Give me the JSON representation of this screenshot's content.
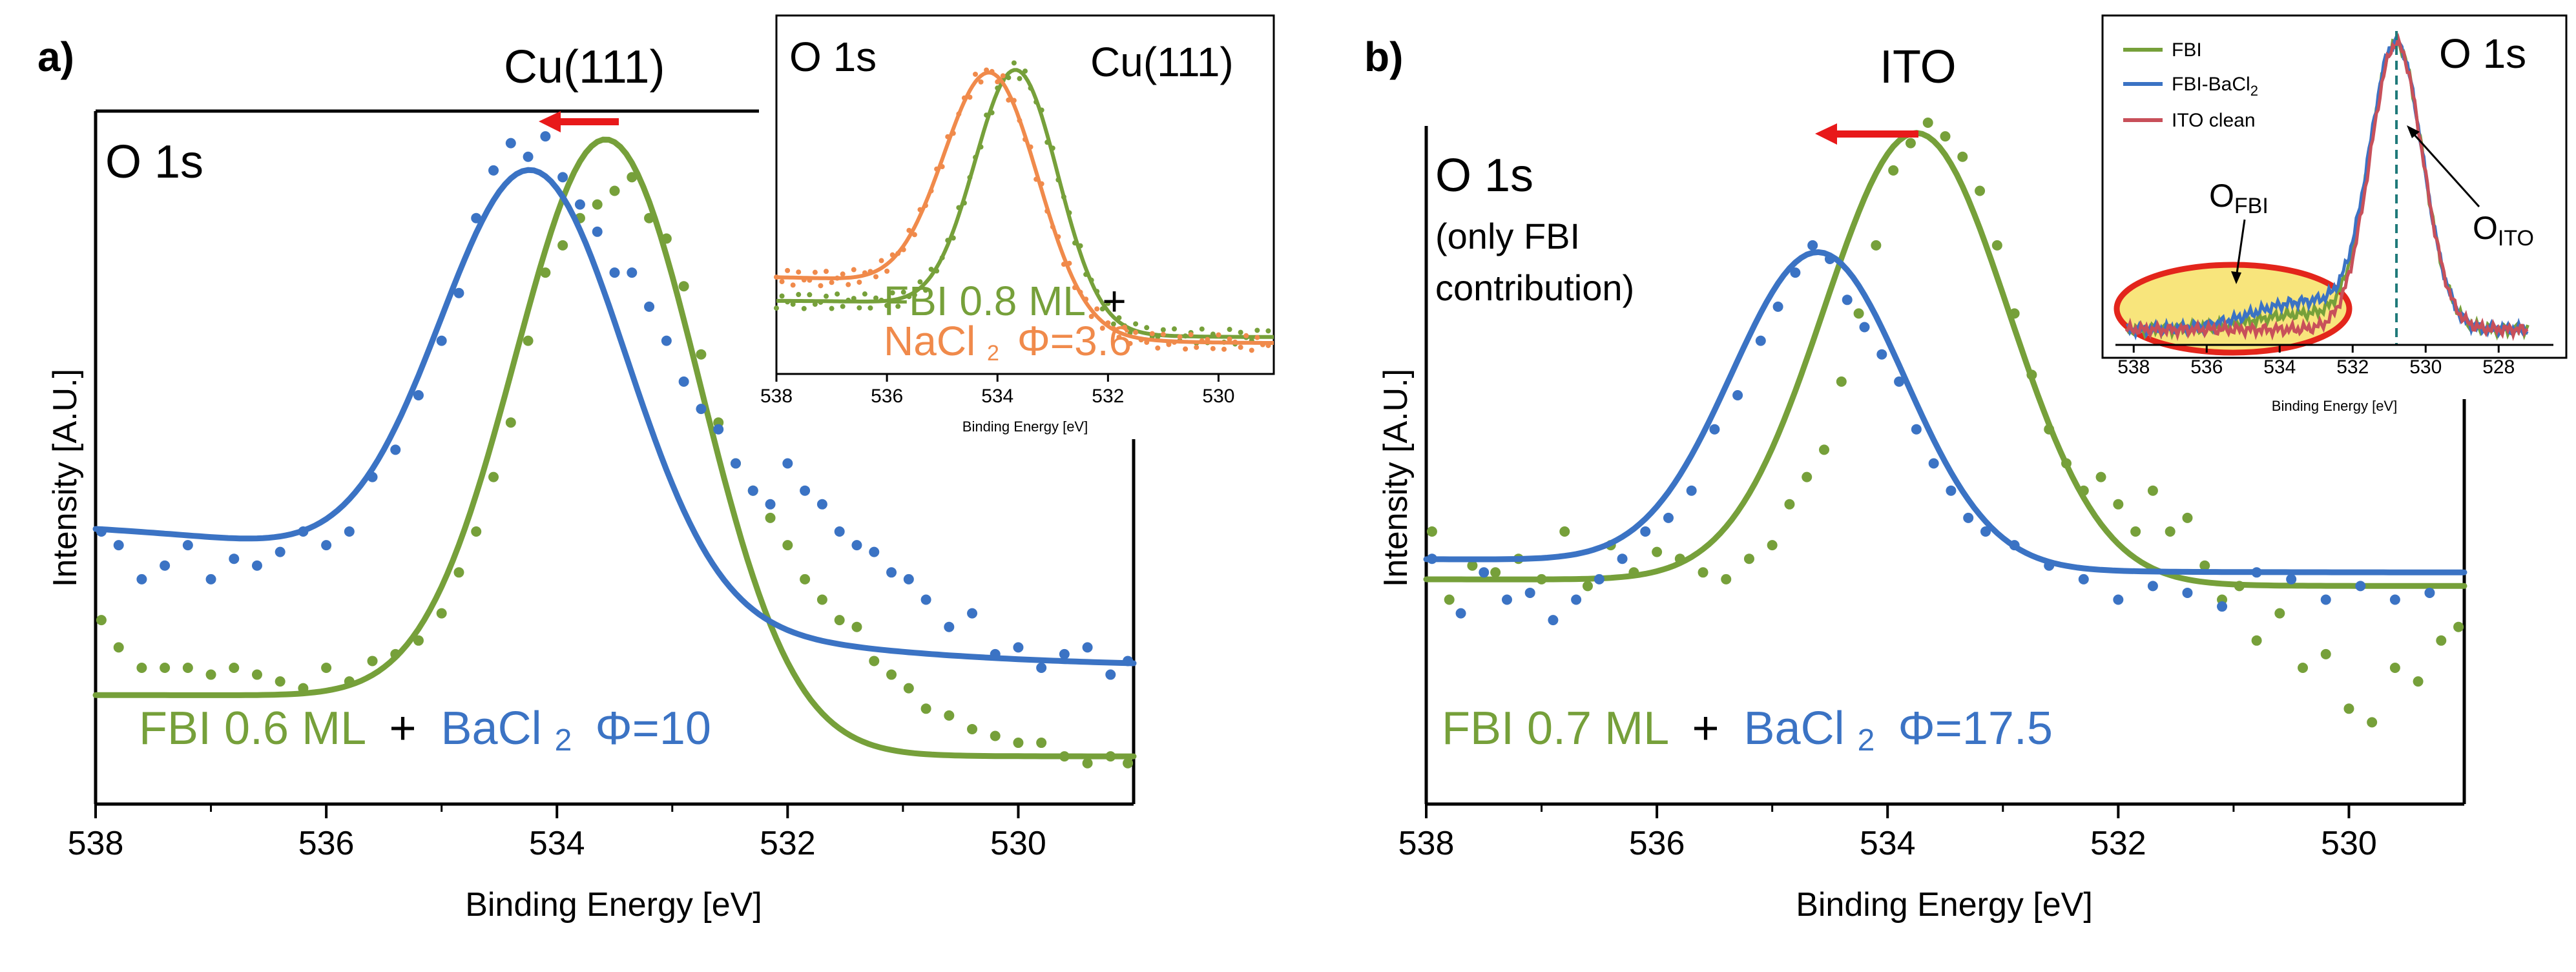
{
  "figure": {
    "colors": {
      "fbi": "#76A03A",
      "bacl": "#3B73C4",
      "nacl": "#F08A4B",
      "ito": "#C8505A",
      "arrow": "#E8191A",
      "highlight_fill": "#F8E57C",
      "highlight_edge": "#E3251B",
      "axis": "#000000",
      "dash": "#1F7A7A"
    }
  },
  "chart_data": [
    {
      "panel": "a",
      "panel_label": "a)",
      "type": "scatter",
      "substrate": "Cu(111)",
      "region_label": "O 1s",
      "xlabel": "Binding Energy [eV]",
      "ylabel": "Intensity [A.U.]",
      "xlim": [
        538,
        529
      ],
      "x_ticks": [
        538,
        536,
        534,
        532,
        530
      ],
      "ylim": [
        0,
        1
      ],
      "grid": false,
      "legend": [
        "FBI 0.6 ML",
        "+",
        "BaCl",
        "2",
        "Φ=10"
      ],
      "annotation": "shift-arrow-left",
      "series": [
        {
          "name": "FBI 0.6 ML",
          "color_key": "fbi",
          "fit": {
            "center": 533.55,
            "sigma": 0.8,
            "amp": 0.86,
            "base_hi": 0.16,
            "base_lo": 0.07,
            "step_w": 0.6
          },
          "points": [
            [
              537.95,
              0.27
            ],
            [
              537.8,
              0.23
            ],
            [
              537.6,
              0.2
            ],
            [
              537.4,
              0.2
            ],
            [
              537.2,
              0.2
            ],
            [
              537.0,
              0.19
            ],
            [
              536.8,
              0.2
            ],
            [
              536.6,
              0.19
            ],
            [
              536.4,
              0.18
            ],
            [
              536.2,
              0.17
            ],
            [
              536.0,
              0.2
            ],
            [
              535.8,
              0.18
            ],
            [
              535.6,
              0.21
            ],
            [
              535.4,
              0.22
            ],
            [
              535.2,
              0.24
            ],
            [
              535.0,
              0.28
            ],
            [
              534.85,
              0.34
            ],
            [
              534.7,
              0.4
            ],
            [
              534.55,
              0.48
            ],
            [
              534.4,
              0.56
            ],
            [
              534.25,
              0.68
            ],
            [
              534.1,
              0.78
            ],
            [
              533.95,
              0.82
            ],
            [
              533.8,
              0.86
            ],
            [
              533.65,
              0.88
            ],
            [
              533.5,
              0.9
            ],
            [
              533.35,
              0.92
            ],
            [
              533.2,
              0.86
            ],
            [
              533.05,
              0.83
            ],
            [
              532.9,
              0.76
            ],
            [
              532.75,
              0.66
            ],
            [
              532.6,
              0.56
            ],
            [
              532.45,
              0.5
            ],
            [
              532.3,
              0.46
            ],
            [
              532.15,
              0.42
            ],
            [
              532.0,
              0.38
            ],
            [
              531.85,
              0.33
            ],
            [
              531.7,
              0.3
            ],
            [
              531.55,
              0.27
            ],
            [
              531.4,
              0.26
            ],
            [
              531.25,
              0.21
            ],
            [
              531.1,
              0.19
            ],
            [
              530.95,
              0.17
            ],
            [
              530.8,
              0.14
            ],
            [
              530.6,
              0.13
            ],
            [
              530.4,
              0.11
            ],
            [
              530.2,
              0.1
            ],
            [
              530.0,
              0.09
            ],
            [
              529.8,
              0.09
            ],
            [
              529.6,
              0.07
            ],
            [
              529.4,
              0.06
            ],
            [
              529.2,
              0.07
            ],
            [
              529.05,
              0.06
            ]
          ]
        },
        {
          "name": "BaCl2 Φ=10",
          "color_key": "bacl",
          "fit": {
            "center": 534.2,
            "sigma": 0.8,
            "amp": 0.62,
            "base_hi": 0.42,
            "base_lo": 0.2,
            "step_w": 1.5
          },
          "points": [
            [
              537.95,
              0.4
            ],
            [
              537.8,
              0.38
            ],
            [
              537.6,
              0.33
            ],
            [
              537.4,
              0.35
            ],
            [
              537.2,
              0.38
            ],
            [
              537.0,
              0.33
            ],
            [
              536.8,
              0.36
            ],
            [
              536.6,
              0.35
            ],
            [
              536.4,
              0.37
            ],
            [
              536.2,
              0.4
            ],
            [
              536.0,
              0.38
            ],
            [
              535.8,
              0.4
            ],
            [
              535.6,
              0.48
            ],
            [
              535.4,
              0.52
            ],
            [
              535.2,
              0.6
            ],
            [
              535.0,
              0.68
            ],
            [
              534.85,
              0.75
            ],
            [
              534.7,
              0.86
            ],
            [
              534.55,
              0.93
            ],
            [
              534.4,
              0.97
            ],
            [
              534.25,
              0.95
            ],
            [
              534.1,
              0.98
            ],
            [
              533.95,
              0.92
            ],
            [
              533.8,
              0.88
            ],
            [
              533.65,
              0.84
            ],
            [
              533.5,
              0.78
            ],
            [
              533.35,
              0.78
            ],
            [
              533.2,
              0.73
            ],
            [
              533.05,
              0.68
            ],
            [
              532.9,
              0.62
            ],
            [
              532.75,
              0.58
            ],
            [
              532.6,
              0.55
            ],
            [
              532.45,
              0.5
            ],
            [
              532.3,
              0.46
            ],
            [
              532.15,
              0.44
            ],
            [
              532.0,
              0.5
            ],
            [
              531.85,
              0.46
            ],
            [
              531.7,
              0.44
            ],
            [
              531.55,
              0.4
            ],
            [
              531.4,
              0.38
            ],
            [
              531.25,
              0.37
            ],
            [
              531.1,
              0.34
            ],
            [
              530.95,
              0.33
            ],
            [
              530.8,
              0.3
            ],
            [
              530.6,
              0.26
            ],
            [
              530.4,
              0.28
            ],
            [
              530.2,
              0.22
            ],
            [
              530.0,
              0.23
            ],
            [
              529.8,
              0.2
            ],
            [
              529.6,
              0.22
            ],
            [
              529.4,
              0.23
            ],
            [
              529.2,
              0.19
            ],
            [
              529.05,
              0.21
            ]
          ]
        }
      ],
      "inset": {
        "type": "scatter",
        "region_label": "O 1s",
        "substrate": "Cu(111)",
        "xlabel": "Binding Energy [eV]",
        "xlim": [
          538,
          529
        ],
        "x_ticks": [
          538,
          536,
          534,
          532,
          530
        ],
        "legend": [
          "FBI 0.8 ML",
          "+",
          "NaCl",
          "2",
          "Φ=3.6"
        ],
        "series": [
          {
            "name": "FBI 0.8 ML",
            "color_key": "fbi",
            "fit": {
              "center": 533.65,
              "sigma": 0.75,
              "amp": 0.82,
              "base_hi": 0.22,
              "base_lo": 0.1,
              "step_w": 0.8
            }
          },
          {
            "name": "NaCl2 Φ=3.6",
            "color_key": "nacl",
            "fit": {
              "center": 534.1,
              "sigma": 0.85,
              "amp": 0.78,
              "base_hi": 0.3,
              "base_lo": 0.08,
              "step_w": 0.9
            }
          }
        ]
      }
    },
    {
      "panel": "b",
      "panel_label": "b)",
      "type": "scatter",
      "substrate": "ITO",
      "region_label": "O 1s",
      "region_note_1": "(only FBI",
      "region_note_2": "contribution)",
      "xlabel": "Binding Energy [eV]",
      "ylabel": "Intensity [A.U.]",
      "xlim": [
        538,
        529
      ],
      "x_ticks": [
        538,
        536,
        534,
        532,
        530
      ],
      "ylim": [
        0,
        1
      ],
      "grid": false,
      "legend": [
        "FBI 0.7 ML",
        "+",
        "BaCl",
        "2",
        "Φ=17.5"
      ],
      "annotation": "shift-arrow-left",
      "series": [
        {
          "name": "FBI 0.7 ML",
          "color_key": "fbi",
          "fit": {
            "center": 533.75,
            "sigma": 0.8,
            "amp": 0.66,
            "base_hi": 0.33,
            "base_lo": 0.32,
            "step_w": 1.0
          },
          "points": [
            [
              537.95,
              0.4
            ],
            [
              537.8,
              0.3
            ],
            [
              537.6,
              0.35
            ],
            [
              537.4,
              0.34
            ],
            [
              537.2,
              0.36
            ],
            [
              537.0,
              0.33
            ],
            [
              536.8,
              0.4
            ],
            [
              536.6,
              0.32
            ],
            [
              536.4,
              0.38
            ],
            [
              536.2,
              0.34
            ],
            [
              536.0,
              0.37
            ],
            [
              535.8,
              0.36
            ],
            [
              535.6,
              0.34
            ],
            [
              535.4,
              0.33
            ],
            [
              535.2,
              0.36
            ],
            [
              535.0,
              0.38
            ],
            [
              534.85,
              0.44
            ],
            [
              534.7,
              0.48
            ],
            [
              534.55,
              0.52
            ],
            [
              534.4,
              0.62
            ],
            [
              534.25,
              0.72
            ],
            [
              534.1,
              0.82
            ],
            [
              533.95,
              0.93
            ],
            [
              533.8,
              0.97
            ],
            [
              533.65,
              1.0
            ],
            [
              533.5,
              0.98
            ],
            [
              533.35,
              0.95
            ],
            [
              533.2,
              0.9
            ],
            [
              533.05,
              0.82
            ],
            [
              532.9,
              0.72
            ],
            [
              532.75,
              0.63
            ],
            [
              532.6,
              0.55
            ],
            [
              532.45,
              0.5
            ],
            [
              532.3,
              0.46
            ],
            [
              532.15,
              0.48
            ],
            [
              532.0,
              0.44
            ],
            [
              531.85,
              0.4
            ],
            [
              531.7,
              0.46
            ],
            [
              531.55,
              0.4
            ],
            [
              531.4,
              0.42
            ],
            [
              531.25,
              0.35
            ],
            [
              531.1,
              0.3
            ],
            [
              530.95,
              0.32
            ],
            [
              530.8,
              0.24
            ],
            [
              530.6,
              0.28
            ],
            [
              530.4,
              0.2
            ],
            [
              530.2,
              0.22
            ],
            [
              530.0,
              0.14
            ],
            [
              529.8,
              0.12
            ],
            [
              529.6,
              0.2
            ],
            [
              529.4,
              0.18
            ],
            [
              529.2,
              0.24
            ],
            [
              529.05,
              0.26
            ]
          ]
        },
        {
          "name": "BaCl2 Φ=17.5",
          "color_key": "bacl",
          "fit": {
            "center": 534.6,
            "sigma": 0.75,
            "amp": 0.46,
            "base_hi": 0.36,
            "base_lo": 0.34,
            "step_w": 1.0
          },
          "points": [
            [
              537.95,
              0.36
            ],
            [
              537.7,
              0.28
            ],
            [
              537.5,
              0.34
            ],
            [
              537.3,
              0.3
            ],
            [
              537.1,
              0.31
            ],
            [
              536.9,
              0.27
            ],
            [
              536.7,
              0.3
            ],
            [
              536.5,
              0.33
            ],
            [
              536.3,
              0.36
            ],
            [
              536.1,
              0.4
            ],
            [
              535.9,
              0.42
            ],
            [
              535.7,
              0.46
            ],
            [
              535.5,
              0.55
            ],
            [
              535.3,
              0.6
            ],
            [
              535.1,
              0.68
            ],
            [
              534.95,
              0.73
            ],
            [
              534.8,
              0.78
            ],
            [
              534.65,
              0.82
            ],
            [
              534.5,
              0.8
            ],
            [
              534.35,
              0.74
            ],
            [
              534.2,
              0.7
            ],
            [
              534.05,
              0.66
            ],
            [
              533.9,
              0.62
            ],
            [
              533.75,
              0.55
            ],
            [
              533.6,
              0.5
            ],
            [
              533.45,
              0.46
            ],
            [
              533.3,
              0.42
            ],
            [
              533.15,
              0.4
            ],
            [
              532.9,
              0.38
            ],
            [
              532.6,
              0.35
            ],
            [
              532.3,
              0.33
            ],
            [
              532.0,
              0.3
            ],
            [
              531.7,
              0.32
            ],
            [
              531.4,
              0.31
            ],
            [
              531.1,
              0.29
            ],
            [
              530.8,
              0.34
            ],
            [
              530.5,
              0.33
            ],
            [
              530.2,
              0.3
            ],
            [
              529.9,
              0.32
            ],
            [
              529.6,
              0.3
            ],
            [
              529.3,
              0.31
            ]
          ]
        }
      ],
      "inset": {
        "type": "line",
        "region_label": "O 1s",
        "xlabel": "Binding Energy [eV]",
        "xlim": [
          538.5,
          526.5
        ],
        "x_ticks": [
          538,
          536,
          534,
          532,
          530,
          528
        ],
        "legend_entries": [
          {
            "label": "FBI",
            "color_key": "fbi"
          },
          {
            "label": "FBI-BaCl",
            "sub": "2",
            "color_key": "bacl"
          },
          {
            "label": "ITO clean",
            "color_key": "ito"
          }
        ],
        "annotations": {
          "o_fbi": "O",
          "o_fbi_sub": "FBI",
          "o_ito": "O",
          "o_ito_sub": "ITO"
        },
        "peak_center": 530.8,
        "series": [
          {
            "name": "FBI",
            "color_key": "fbi"
          },
          {
            "name": "FBI-BaCl2",
            "color_key": "bacl"
          },
          {
            "name": "ITO clean",
            "color_key": "ito"
          }
        ]
      }
    }
  ]
}
